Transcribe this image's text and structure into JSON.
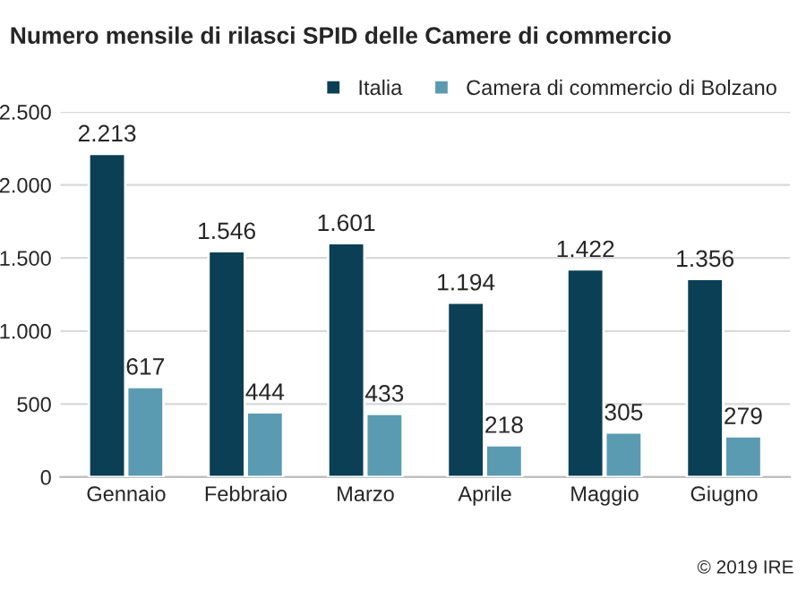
{
  "chart_data": {
    "type": "bar",
    "title": "Numero mensile di rilasci SPID delle Camere di commercio",
    "categories": [
      "Gennaio",
      "Febbraio",
      "Marzo",
      "Aprile",
      "Maggio",
      "Giugno"
    ],
    "series": [
      {
        "name": "Italia",
        "color": "#0b3f55",
        "values": [
          2213,
          1546,
          1601,
          1194,
          1422,
          1356
        ],
        "value_labels": [
          "2.213",
          "1.546",
          "1.601",
          "1.194",
          "1.422",
          "1.356"
        ]
      },
      {
        "name": "Camera di commercio di Bolzano",
        "color": "#5b9bb1",
        "values": [
          617,
          444,
          433,
          218,
          305,
          279
        ],
        "value_labels": [
          "617",
          "444",
          "433",
          "218",
          "305",
          "279"
        ]
      }
    ],
    "ylim": [
      0,
      2500
    ],
    "yticks": [
      {
        "value": 0,
        "label": "0"
      },
      {
        "value": 500,
        "label": "500"
      },
      {
        "value": 1000,
        "label": "1.000"
      },
      {
        "value": 1500,
        "label": "1.500"
      },
      {
        "value": 2000,
        "label": "2.000"
      },
      {
        "value": 2500,
        "label": "2.500"
      }
    ],
    "grid": "y",
    "legend": "top right",
    "annotations": [
      "© 2019 IRE"
    ]
  }
}
